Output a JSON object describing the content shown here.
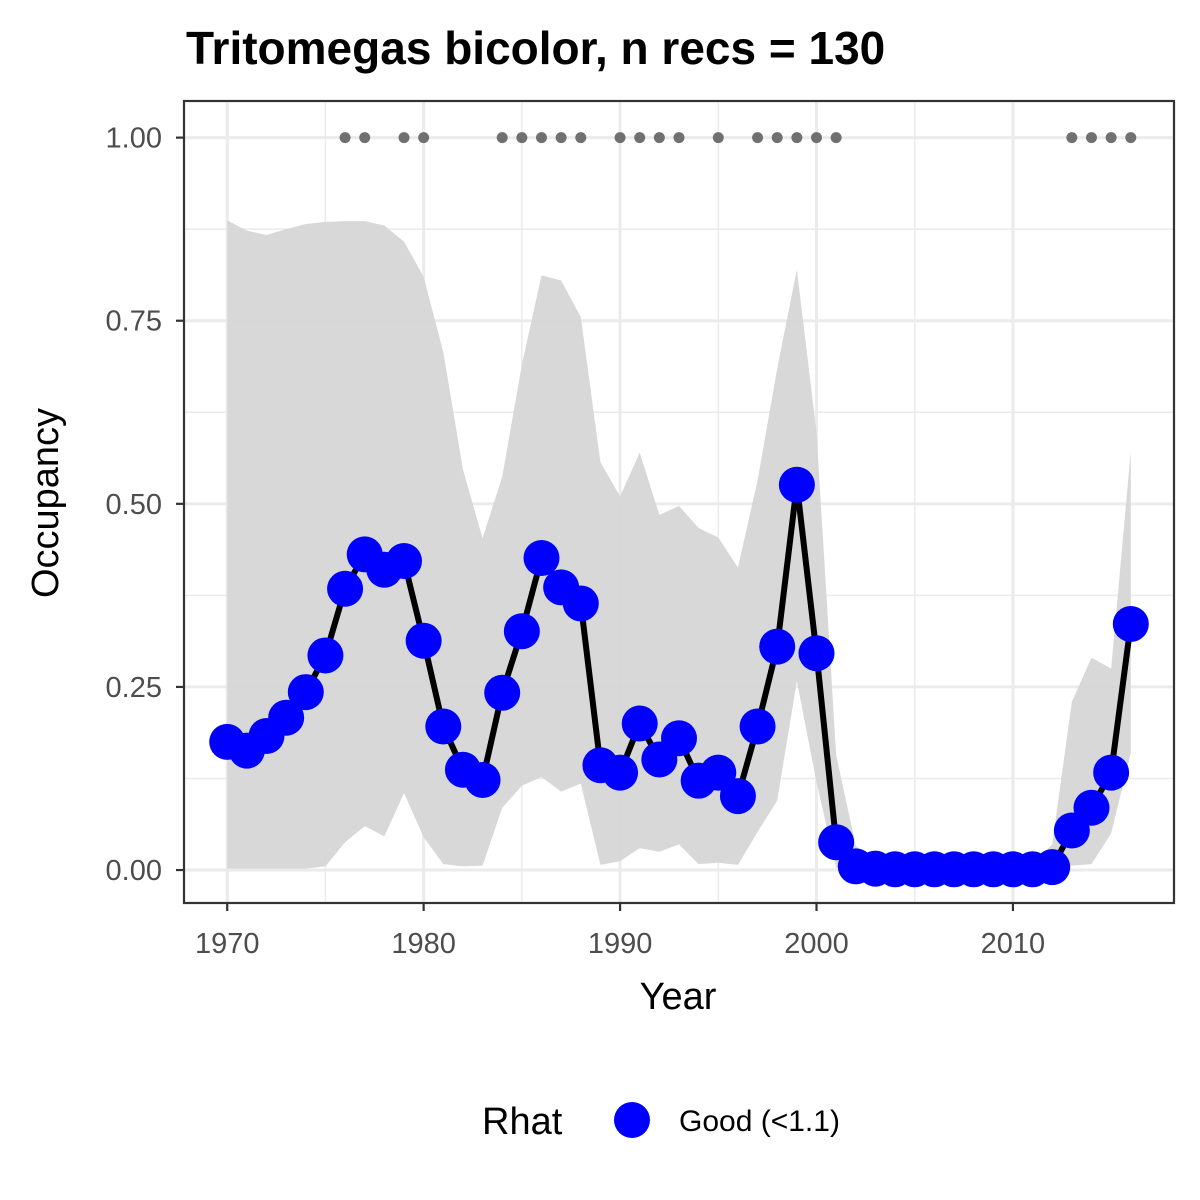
{
  "chart_data": {
    "type": "line",
    "title": "Tritomegas bicolor, n recs = 130",
    "xlabel": "Year",
    "ylabel": "Occupancy",
    "xlim": [
      1967.8,
      2018.2
    ],
    "ylim": [
      -0.045,
      1.05
    ],
    "x_ticks": [
      1970,
      1980,
      1990,
      2000,
      2010
    ],
    "y_ticks": [
      0.0,
      0.25,
      0.5,
      0.75,
      1.0
    ],
    "y_tick_labels": [
      "0.00",
      "0.25",
      "0.50",
      "0.75",
      "1.00"
    ],
    "grid": true,
    "years": [
      1970,
      1971,
      1972,
      1973,
      1974,
      1975,
      1976,
      1977,
      1978,
      1979,
      1980,
      1981,
      1982,
      1983,
      1984,
      1985,
      1986,
      1987,
      1988,
      1989,
      1990,
      1991,
      1992,
      1993,
      1994,
      1995,
      1996,
      1997,
      1998,
      1999,
      2000,
      2001,
      2002,
      2003,
      2004,
      2005,
      2006,
      2007,
      2008,
      2009,
      2010,
      2011,
      2012,
      2013,
      2014,
      2015,
      2016
    ],
    "occupancy": [
      0.175,
      0.163,
      0.183,
      0.208,
      0.243,
      0.293,
      0.384,
      0.431,
      0.41,
      0.422,
      0.313,
      0.196,
      0.137,
      0.123,
      0.242,
      0.326,
      0.426,
      0.386,
      0.364,
      0.143,
      0.133,
      0.2,
      0.151,
      0.18,
      0.122,
      0.133,
      0.101,
      0.196,
      0.305,
      0.526,
      0.296,
      0.038,
      0.005,
      0.002,
      0.001,
      0.001,
      0.001,
      0.001,
      0.001,
      0.001,
      0.001,
      0.001,
      0.004,
      0.054,
      0.085,
      0.133,
      0.336
    ],
    "ci_lower": [
      0.002,
      0.002,
      0.002,
      0.002,
      0.002,
      0.005,
      0.038,
      0.06,
      0.046,
      0.105,
      0.045,
      0.008,
      0.005,
      0.006,
      0.085,
      0.115,
      0.127,
      0.107,
      0.118,
      0.007,
      0.012,
      0.03,
      0.025,
      0.035,
      0.008,
      0.01,
      0.007,
      0.052,
      0.095,
      0.258,
      0.12,
      0.003,
      0.0,
      0.0,
      0.0,
      0.0,
      0.0,
      0.0,
      0.0,
      0.0,
      0.0,
      0.0,
      0.0,
      0.006,
      0.008,
      0.05,
      0.16
    ],
    "ci_upper": [
      0.887,
      0.873,
      0.867,
      0.875,
      0.882,
      0.885,
      0.886,
      0.886,
      0.88,
      0.858,
      0.81,
      0.707,
      0.547,
      0.453,
      0.537,
      0.69,
      0.812,
      0.805,
      0.755,
      0.557,
      0.51,
      0.57,
      0.485,
      0.497,
      0.467,
      0.454,
      0.413,
      0.532,
      0.685,
      0.82,
      0.598,
      0.157,
      0.033,
      0.012,
      0.008,
      0.006,
      0.005,
      0.005,
      0.005,
      0.005,
      0.006,
      0.008,
      0.035,
      0.23,
      0.29,
      0.275,
      0.572
    ],
    "record_years": [
      1976,
      1977,
      1979,
      1980,
      1984,
      1985,
      1986,
      1987,
      1988,
      1990,
      1991,
      1992,
      1993,
      1995,
      1997,
      1998,
      1999,
      2000,
      2001,
      2013,
      2014,
      2015,
      2016
    ],
    "record_y": 1.0,
    "colors": {
      "line": "#000000",
      "point": "#0000ff",
      "ribbon": "#d6d6d6",
      "record_points": "#707070",
      "grid": "#ebebeb",
      "panel_border": "#333333"
    },
    "legend": {
      "title": "Rhat",
      "placement": "bottom",
      "entries": [
        {
          "label": "Good (<1.1)",
          "color": "#0000ff"
        }
      ]
    }
  }
}
